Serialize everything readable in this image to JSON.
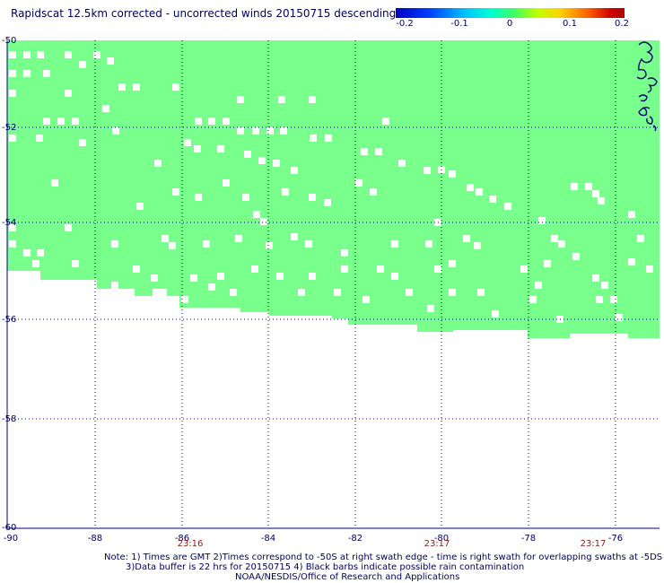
{
  "title": "Rapidscat 12.5km corrected - uncorrected winds 20150715 descending",
  "colorbar": {
    "ticks": [
      {
        "value": "-0.2"
      },
      {
        "value": "-0.1"
      },
      {
        "value": "0"
      },
      {
        "value": "0.1"
      },
      {
        "value": "0.2"
      }
    ]
  },
  "colors": {
    "swath_fill": "#78ff8c",
    "grid_dots": "#000080",
    "text": "#000060",
    "time_text": "#8b1a1a",
    "coastline": "#000070"
  },
  "axes": {
    "x_labels": [
      "-90",
      "-88",
      "-86",
      "-84",
      "-82",
      "-80",
      "-78",
      "-76"
    ],
    "y_labels": [
      "-50",
      "-52",
      "-54",
      "-56",
      "-58",
      "-60"
    ]
  },
  "times": [
    "23:16",
    "23:17",
    "23:17"
  ],
  "notes": {
    "line1": "Note: 1) Times are GMT 2)Times correspond to -50S at right swath edge - time is right swath for overlapping swaths at -5DS",
    "line2": "3)Data buffer is 22 hrs for 20150715 4) Black barbs indicate possible rain contamination",
    "line3": "NOAA/NESDIS/Office of Research and Applications"
  }
}
